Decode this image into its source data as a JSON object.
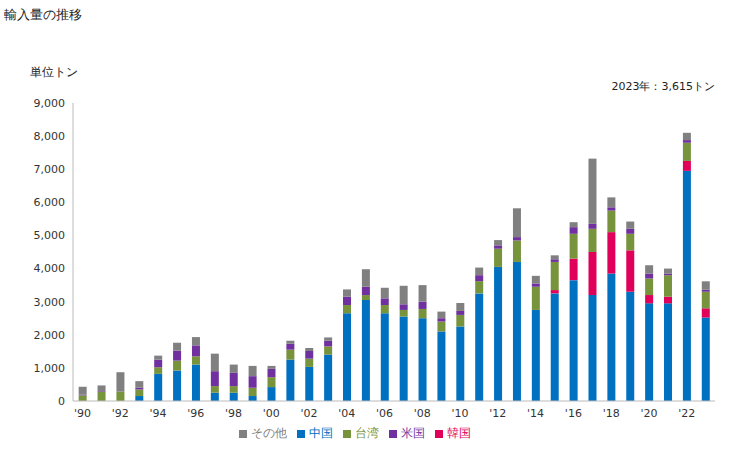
{
  "chart_data": {
    "type": "bar",
    "title": "輸入量の推移",
    "subtitle": "単位トン",
    "annotation": "2023年：3,615トン",
    "stacked": true,
    "grid": false,
    "legend": "bottom",
    "categories": [
      "'90",
      null,
      "'92",
      null,
      "'94",
      null,
      "'96",
      null,
      "'98",
      null,
      "'00",
      null,
      "'02",
      null,
      "'04",
      null,
      "'06",
      null,
      "'08",
      null,
      "'10",
      null,
      "'12",
      null,
      "'14",
      null,
      "'16",
      null,
      "'18",
      null,
      "'20",
      null,
      "'22",
      null
    ],
    "ylim": [
      0,
      9000
    ],
    "yticks": [
      0,
      {
        "value": 1000,
        "label": "1,000"
      },
      {
        "value": 2000,
        "label": "2,000"
      },
      {
        "value": 3000,
        "label": "3,000"
      },
      {
        "value": 4000,
        "label": "4,000"
      },
      {
        "value": 5000,
        "label": "5,000"
      },
      {
        "value": 6000,
        "label": "6,000"
      },
      {
        "value": 7000,
        "label": "7,000"
      },
      {
        "value": 8000,
        "label": "8,000"
      },
      {
        "value": 9000,
        "label": "9,000"
      }
    ],
    "series": [
      {
        "name": "中国",
        "color": "#0070c0",
        "values": [
          0,
          0,
          0,
          150,
          820,
          920,
          1100,
          250,
          250,
          150,
          420,
          1250,
          1030,
          1400,
          2650,
          3050,
          2650,
          2550,
          2500,
          2100,
          2250,
          3250,
          4050,
          4200,
          2750,
          3250,
          3650,
          3200,
          3850,
          3300,
          2950,
          2950,
          6950,
          2520
        ]
      },
      {
        "name": "韓国",
        "color": "#e0005a",
        "values": [
          0,
          0,
          0,
          0,
          0,
          0,
          0,
          0,
          0,
          0,
          0,
          0,
          0,
          0,
          0,
          0,
          0,
          0,
          0,
          0,
          0,
          0,
          0,
          0,
          0,
          100,
          650,
          1300,
          1250,
          1250,
          250,
          200,
          300,
          280
        ]
      },
      {
        "name": "台湾",
        "color": "#77933c",
        "values": [
          170,
          280,
          280,
          200,
          200,
          300,
          250,
          200,
          200,
          250,
          300,
          300,
          250,
          250,
          250,
          150,
          250,
          200,
          280,
          300,
          350,
          370,
          550,
          650,
          700,
          850,
          750,
          700,
          650,
          500,
          500,
          650,
          550,
          500
        ]
      },
      {
        "name": "米国",
        "color": "#7030a0",
        "values": [
          20,
          20,
          0,
          50,
          230,
          300,
          330,
          450,
          400,
          350,
          250,
          180,
          230,
          170,
          250,
          250,
          200,
          170,
          220,
          100,
          120,
          180,
          100,
          100,
          100,
          80,
          200,
          150,
          100,
          150,
          150,
          50,
          80,
          60
        ]
      },
      {
        "name": "その他",
        "color": "#808080",
        "values": [
          240,
          170,
          590,
          200,
          120,
          240,
          250,
          530,
          250,
          310,
          90,
          90,
          90,
          100,
          220,
          530,
          320,
          560,
          500,
          200,
          240,
          230,
          160,
          870,
          230,
          120,
          150,
          1970,
          300,
          220,
          250,
          150,
          220,
          255
        ]
      }
    ]
  }
}
